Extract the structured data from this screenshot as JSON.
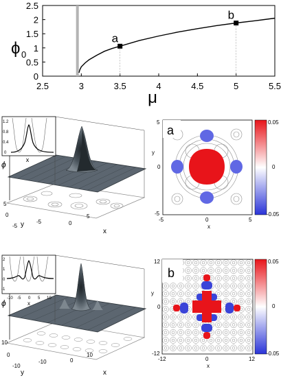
{
  "chart_data": [
    {
      "type": "line",
      "panel": "top",
      "ylabel": "ϕ",
      "ylabel_sub": "0",
      "xlabel": "μ",
      "xlim": [
        2.5,
        5.5
      ],
      "ylim": [
        0,
        2.5
      ],
      "xticks": [
        "2.5",
        "3",
        "3.5",
        "4",
        "4.5",
        "5",
        "5.5"
      ],
      "yticks": [
        "0",
        "0.5",
        "1",
        "1.5",
        "2",
        "2.5"
      ],
      "threshold_x": 2.95,
      "series": [
        {
          "x": [
            2.97,
            2.98,
            3.0,
            3.05,
            3.1,
            3.2,
            3.3,
            3.4,
            3.5,
            3.75,
            4.0,
            4.25,
            4.5,
            4.75,
            5.0,
            5.25,
            5.5
          ],
          "y": [
            0.12,
            0.22,
            0.33,
            0.47,
            0.58,
            0.74,
            0.88,
            0.98,
            1.06,
            1.26,
            1.42,
            1.56,
            1.68,
            1.79,
            1.88,
            1.96,
            2.05
          ]
        }
      ],
      "points": [
        {
          "label": "a",
          "x": 3.5,
          "y": 1.06
        },
        {
          "label": "b",
          "x": 5.0,
          "y": 1.88
        }
      ]
    },
    {
      "type": "heatmap",
      "panel": "a",
      "label": "a",
      "xlabel": "x",
      "ylabel": "y",
      "xlim": [
        -5,
        5
      ],
      "ylim": [
        -5,
        5
      ],
      "xticks": [
        "-5",
        "0",
        "5"
      ],
      "yticks": [
        "-5",
        "0",
        "5"
      ],
      "colorbar": {
        "min": -0.05,
        "max": 0.05,
        "ticks": [
          "0.05",
          "0",
          "-0.05"
        ]
      },
      "inset_yticks": [
        "0",
        "0.4",
        "0.8",
        "1.2"
      ],
      "inset_xlabel": "x",
      "surface_ylabel": "ϕ",
      "surface_xticks": [
        "-5",
        "0",
        "5"
      ],
      "surface_yticks": [
        "5",
        "0",
        "-5"
      ],
      "surface_xlabel": "x",
      "surface_yaxis_label": "y"
    },
    {
      "type": "heatmap",
      "panel": "b",
      "label": "b",
      "xlabel": "x",
      "ylabel": "y",
      "xlim": [
        -12,
        12
      ],
      "ylim": [
        -12,
        12
      ],
      "xticks": [
        "-12",
        "0",
        "12"
      ],
      "yticks": [
        "12",
        "0",
        "-12"
      ],
      "colorbar": {
        "min": -0.05,
        "max": 0.05,
        "ticks": [
          "0.05",
          "0",
          "-0.05"
        ]
      },
      "inset_yticks": [
        "2",
        "1",
        "0",
        "-1"
      ],
      "inset_xticks": [
        "-10",
        "-5",
        "0",
        "5",
        "10"
      ],
      "inset_xlabel": "x",
      "surface_ylabel": "ϕ",
      "surface_xticks": [
        "-10",
        "0",
        "10"
      ],
      "surface_yticks": [
        "10",
        "0",
        "-10"
      ],
      "surface_xlabel": "x",
      "surface_yaxis_label": "y"
    }
  ],
  "colors": {
    "positive": "#e8141a",
    "negative": "#2a34d8",
    "contour": "#8a8a8a",
    "surface": "#5c6670"
  }
}
